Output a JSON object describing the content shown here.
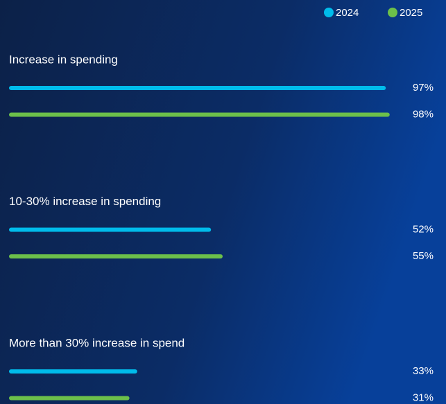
{
  "chart_data": {
    "type": "hbar",
    "categories": [
      "Increase in spending",
      "10-30% increase in spending",
      "More than 30% increase in spend"
    ],
    "series": [
      {
        "name": "2024",
        "color": "#00bceb",
        "values": [
          97,
          52,
          33
        ],
        "value_labels": [
          "97%",
          "52%",
          "33%"
        ]
      },
      {
        "name": "2025",
        "color": "#6cc04a",
        "values": [
          98,
          55,
          31
        ],
        "value_labels": [
          "98%",
          "55%",
          "31%"
        ]
      }
    ],
    "xlim": [
      0,
      100
    ],
    "legend": "top-right"
  }
}
